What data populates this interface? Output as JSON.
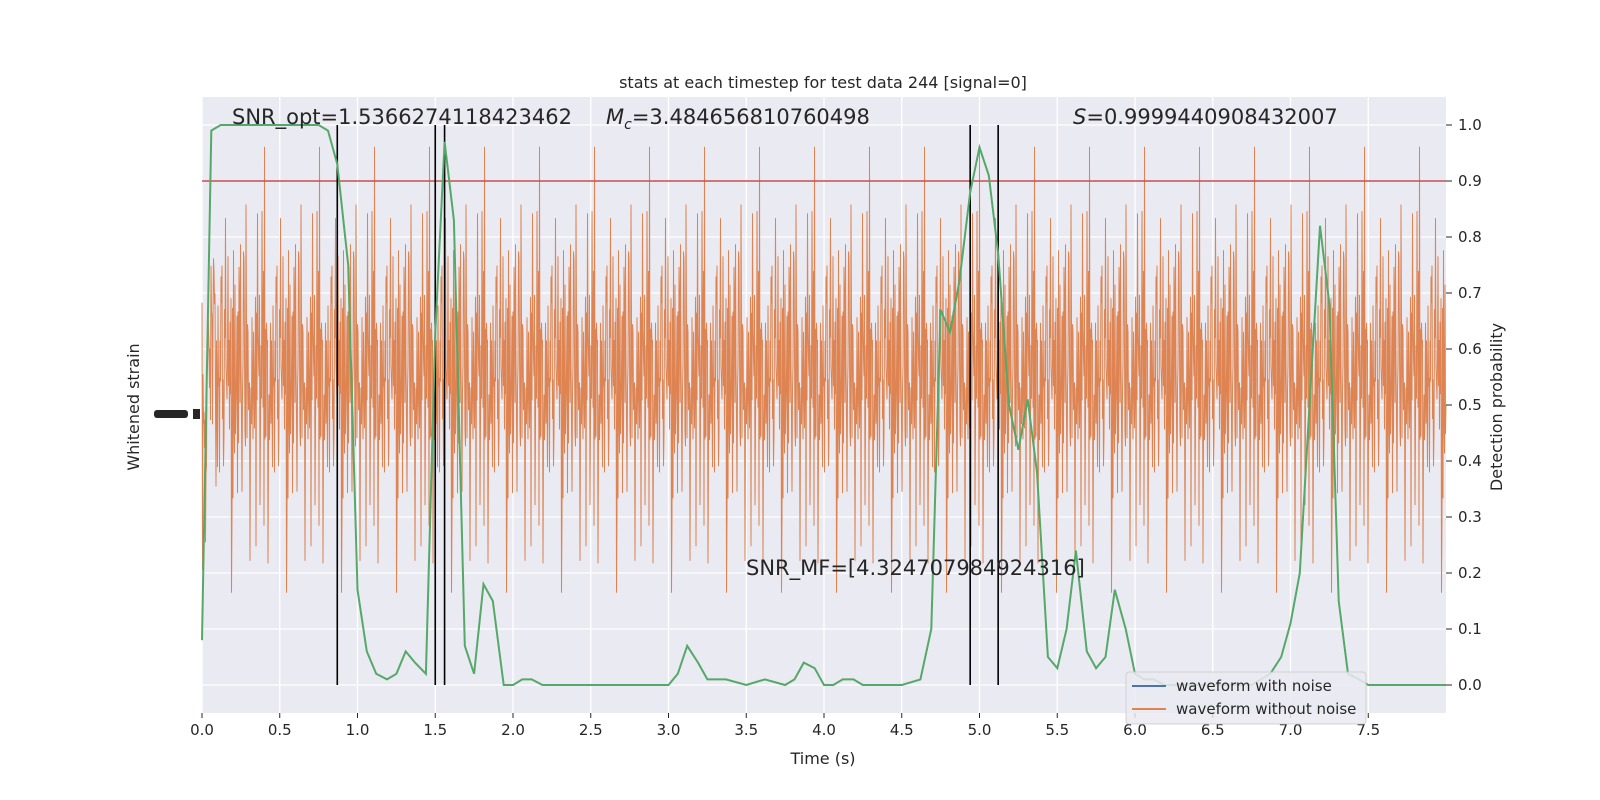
{
  "chart_data": {
    "type": "line",
    "title": "stats at each timestep for test data 244 [signal=0]",
    "xlabel": "Time (s)",
    "ylabel_left": "Whitened strain",
    "ylabel_right": "Detection probability",
    "xlim": [
      0.0,
      8.0
    ],
    "ylim_right": [
      -0.05,
      1.05
    ],
    "x_ticks": [
      "0.0",
      "0.5",
      "1.0",
      "1.5",
      "2.0",
      "2.5",
      "3.0",
      "3.5",
      "4.0",
      "4.5",
      "5.0",
      "5.5",
      "6.0",
      "6.5",
      "7.0",
      "7.5"
    ],
    "y_ticks_right": [
      "0.0",
      "0.1",
      "0.2",
      "0.3",
      "0.4",
      "0.5",
      "0.6",
      "0.7",
      "0.8",
      "0.9",
      "1.0"
    ],
    "grid": true,
    "legend_position": "lower-right",
    "threshold": {
      "value": 0.9,
      "color": "#c44e52"
    },
    "vertical_markers": [
      0.87,
      1.5,
      1.56,
      4.94,
      5.12
    ],
    "annotations": {
      "snr_opt": "SNR_opt=1.5366274118423462",
      "mc_symbol": "M",
      "mc_sub": "c",
      "mc_value": "=3.484656810760498",
      "s_symbol": "S",
      "s_value": "=0.9999440908432007",
      "snr_mf": "SNR_MF=[4.324707984924316]"
    },
    "series": [
      {
        "name": "waveform with noise",
        "color": "#4c72b0"
      },
      {
        "name": "waveform without noise",
        "color": "#dd8452"
      },
      {
        "color": "#55a868",
        "x": [
          0.0,
          0.06,
          0.12,
          0.19,
          0.25,
          0.31,
          0.37,
          0.44,
          0.5,
          0.56,
          0.62,
          0.69,
          0.75,
          0.81,
          0.87,
          0.94,
          1.0,
          1.06,
          1.12,
          1.19,
          1.25,
          1.31,
          1.37,
          1.44,
          1.5,
          1.56,
          1.62,
          1.69,
          1.75,
          1.81,
          1.87,
          1.94,
          2.0,
          2.06,
          2.12,
          2.19,
          2.25,
          2.31,
          2.5,
          2.75,
          3.0,
          3.06,
          3.12,
          3.19,
          3.25,
          3.31,
          3.37,
          3.5,
          3.62,
          3.75,
          3.81,
          3.87,
          3.94,
          4.0,
          4.06,
          4.12,
          4.19,
          4.25,
          4.37,
          4.5,
          4.62,
          4.69,
          4.75,
          4.81,
          4.87,
          4.94,
          5.0,
          5.06,
          5.12,
          5.19,
          5.25,
          5.31,
          5.37,
          5.44,
          5.5,
          5.56,
          5.62,
          5.69,
          5.75,
          5.81,
          5.87,
          5.94,
          6.0,
          6.06,
          6.12,
          6.19,
          6.25,
          6.5,
          6.75,
          6.87,
          6.94,
          7.0,
          7.06,
          7.12,
          7.19,
          7.25,
          7.31,
          7.37,
          7.44,
          7.5,
          7.56,
          7.62,
          7.75,
          8.0
        ],
        "y": [
          0.08,
          0.99,
          1.0,
          1.0,
          1.0,
          1.0,
          1.0,
          1.0,
          1.0,
          1.0,
          1.0,
          1.0,
          1.0,
          0.99,
          0.93,
          0.75,
          0.17,
          0.06,
          0.02,
          0.01,
          0.02,
          0.06,
          0.04,
          0.02,
          0.63,
          0.97,
          0.83,
          0.07,
          0.02,
          0.18,
          0.15,
          0.0,
          0.0,
          0.01,
          0.01,
          0.0,
          0.0,
          0.0,
          0.0,
          0.0,
          0.0,
          0.02,
          0.07,
          0.04,
          0.01,
          0.01,
          0.01,
          0.0,
          0.01,
          0.0,
          0.01,
          0.04,
          0.03,
          0.0,
          0.0,
          0.01,
          0.01,
          0.0,
          0.0,
          0.0,
          0.01,
          0.1,
          0.67,
          0.63,
          0.72,
          0.88,
          0.96,
          0.91,
          0.77,
          0.5,
          0.42,
          0.51,
          0.38,
          0.05,
          0.03,
          0.1,
          0.24,
          0.06,
          0.03,
          0.05,
          0.17,
          0.1,
          0.02,
          0.01,
          0.01,
          0.0,
          0.0,
          0.0,
          0.0,
          0.02,
          0.05,
          0.11,
          0.2,
          0.49,
          0.82,
          0.68,
          0.15,
          0.02,
          0.01,
          0.0,
          0.0,
          0.0,
          0.0,
          0.0
        ]
      }
    ]
  }
}
